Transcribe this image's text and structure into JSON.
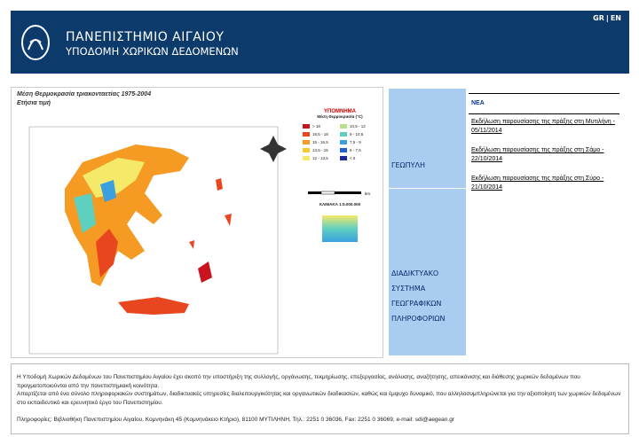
{
  "header": {
    "title": "ΠΑΝΕΠΙΣΤΗΜΙΟ ΑΙΓΑΙΟΥ",
    "subtitle": "ΥΠΟΔΟΜΗ ΧΩΡΙΚΩΝ ΔΕΔΟΜΕΝΩΝ",
    "lang_gr": "GR",
    "lang_sep": "|",
    "lang_en": "EN"
  },
  "map": {
    "title": "Μέση Θερμοκρασία τριακονταετίας 1975-2004",
    "subtitle": "Ετήσια τιμή",
    "legend_title": "ΥΠΟΜΝΗΜΑ",
    "legend_subtitle": "Μέση Θερμοκρασία (°C)",
    "legend": [
      {
        "label": "> 18",
        "color": "#c8141e"
      },
      {
        "label": "16,5 - 18",
        "color": "#e8461e"
      },
      {
        "label": "15 - 16,5",
        "color": "#f59a23"
      },
      {
        "label": "13,5 - 15",
        "color": "#f7c832"
      },
      {
        "label": "12 - 13,5",
        "color": "#f5e96a"
      },
      {
        "label": "10,5 - 12",
        "color": "#b7e28a"
      },
      {
        "label": "9 - 10,5",
        "color": "#5fd0c0"
      },
      {
        "label": "7,5 - 9",
        "color": "#3aa0e0"
      },
      {
        "label": "6 - 7,5",
        "color": "#2060d0"
      },
      {
        "label": "< 6",
        "color": "#1a2a9a"
      }
    ],
    "scale_unit": "km",
    "scale": "ΚΛΙΜΑΚΑ 1:5.000.000"
  },
  "nav": [
    "ΓΕΩΠΥΛΗ",
    "ΔΙΑΔΙΚΤΥΑΚΟ ΣΥΣΤΗΜΑ ΓΕΩΓΡΑΦΙΚΩΝ ΠΛΗΡΟΦΟΡΙΩΝ"
  ],
  "news": {
    "title": "ΝΕΑ",
    "items": [
      "Εκδήλωση παρουσίασης της πράξης στη Μυτιλήνη - 05/11/2014",
      "Εκδήλωση παρουσίασης της πράξης στη Σάμο - 22/10/2014",
      "Εκδήλωση παρουσίασης της πράξης στη Σύρο - 21/10/2014"
    ]
  },
  "footer": {
    "paragraphs": [
      "Η Υποδομή Χωρικών Δεδομένων του Πανεπιστημίου Αιγαίου έχει σκοπό την υποστήριξη της συλλογής, οργάνωσης, τεκμηρίωσης, επεξεργασίας, ανάλυσης, αναζήτησης, απεικόνισης και διάθεσης χωρικών δεδομένων που πραγματοποιούνται από την πανεπιστημιακή κοινότητα.",
      "Απαρτίζεται από ένα σύνολο πληροφοριακών συστημάτων, διαδικτυακές υπηρεσίες διαλειτουργικότητας και οργανωτικών διαδικασιών, καθώς και έμψυχο δυναμικό, που αλληλοσυμπληρώνεται για την αξιοποίηση των χωρικών δεδομένων στο εκπαιδευτικό και ερευνητικό έργο του Πανεπιστημίου."
    ],
    "contact": "Πληροφορίες: Βιβλιοθήκη Πανεπιστημίου Αιγαίου, Κομνηνάκη 45 (Κομνηνάκειο Κτήριο), 81100 ΜΥΤΙΛΗΝΗ, Τηλ.: 2251 0 36036, Fax: 2251 0 36069, e-mail: sdi@aegean.gr"
  }
}
